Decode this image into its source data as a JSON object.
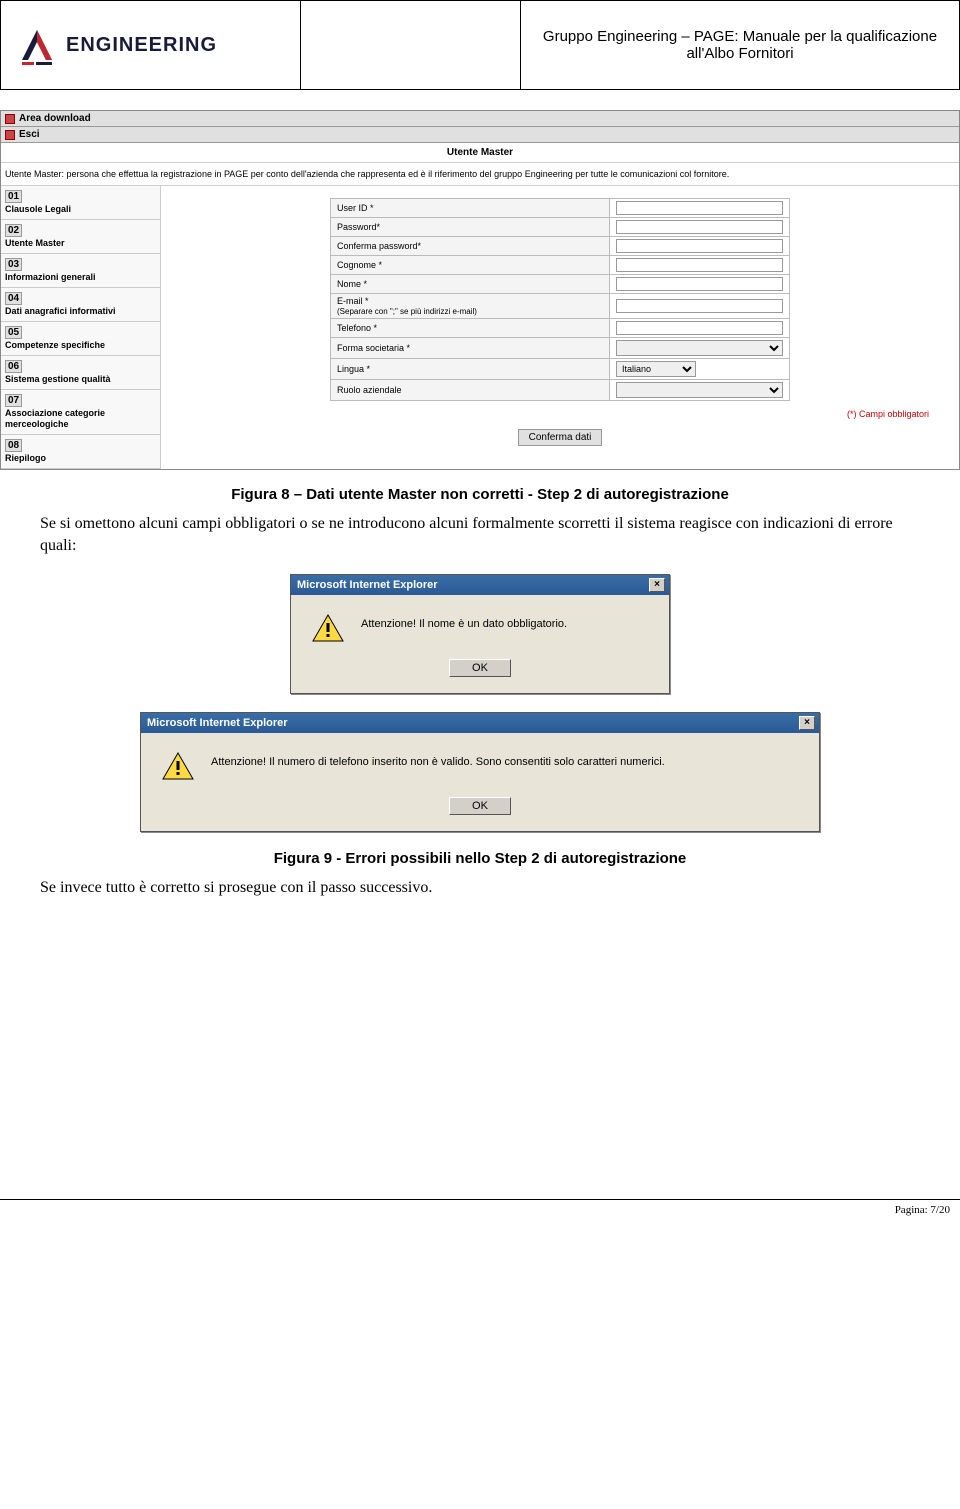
{
  "header": {
    "logo_text": "ENGINEERING",
    "title_line": "Gruppo Engineering – PAGE: Manuale per la qualificazione all'Albo Fornitori"
  },
  "screenshot": {
    "nav": {
      "download": "Area download",
      "esci": "Esci"
    },
    "page_title": "Utente Master",
    "description": "Utente Master: persona che effettua la registrazione in PAGE per conto dell'azienda che rappresenta ed è il riferimento del gruppo Engineering per tutte le comunicazioni col fornitore.",
    "sidebar_steps": [
      {
        "num": "01",
        "label": "Clausole Legali"
      },
      {
        "num": "02",
        "label": "Utente Master"
      },
      {
        "num": "03",
        "label": "Informazioni generali"
      },
      {
        "num": "04",
        "label": "Dati anagrafici informativi"
      },
      {
        "num": "05",
        "label": "Competenze specifiche"
      },
      {
        "num": "06",
        "label": "Sistema gestione qualità"
      },
      {
        "num": "07",
        "label": "Associazione categorie merceologiche"
      },
      {
        "num": "08",
        "label": "Riepilogo"
      }
    ],
    "fields": {
      "user_id": "User ID *",
      "password": "Password*",
      "confirm_password": "Conferma password*",
      "cognome": "Cognome *",
      "nome": "Nome *",
      "email": "E-mail *",
      "email_hint": "(Separare con \";\" se più indirizzi e-mail)",
      "telefono": "Telefono *",
      "forma": "Forma societaria *",
      "lingua": "Lingua *",
      "lingua_value": "Italiano",
      "ruolo": "Ruolo aziendale"
    },
    "required_note": "(*) Campi obbligatori",
    "confirm_button": "Conferma dati"
  },
  "caption1": "Figura 8 – Dati utente Master non corretti - Step 2 di autoregistrazione",
  "paragraph1": "Se si omettono alcuni campi obbligatori o se ne introducono alcuni formalmente scorretti il sistema reagisce con indicazioni di errore quali:",
  "dialog1": {
    "title": "Microsoft Internet Explorer",
    "message": "Attenzione! Il nome è un dato obbligatorio.",
    "ok": "OK"
  },
  "dialog2": {
    "title": "Microsoft Internet Explorer",
    "message": "Attenzione! Il numero di telefono inserito non è valido. Sono consentiti solo caratteri numerici.",
    "ok": "OK"
  },
  "caption2": "Figura 9 - Errori possibili nello Step 2 di autoregistrazione",
  "paragraph2": "Se invece tutto è corretto si prosegue con il passo successivo.",
  "footer": "Pagina: 7/20",
  "colors": {
    "brand_red": "#c1272d",
    "brand_navy": "#1a1a3a"
  }
}
